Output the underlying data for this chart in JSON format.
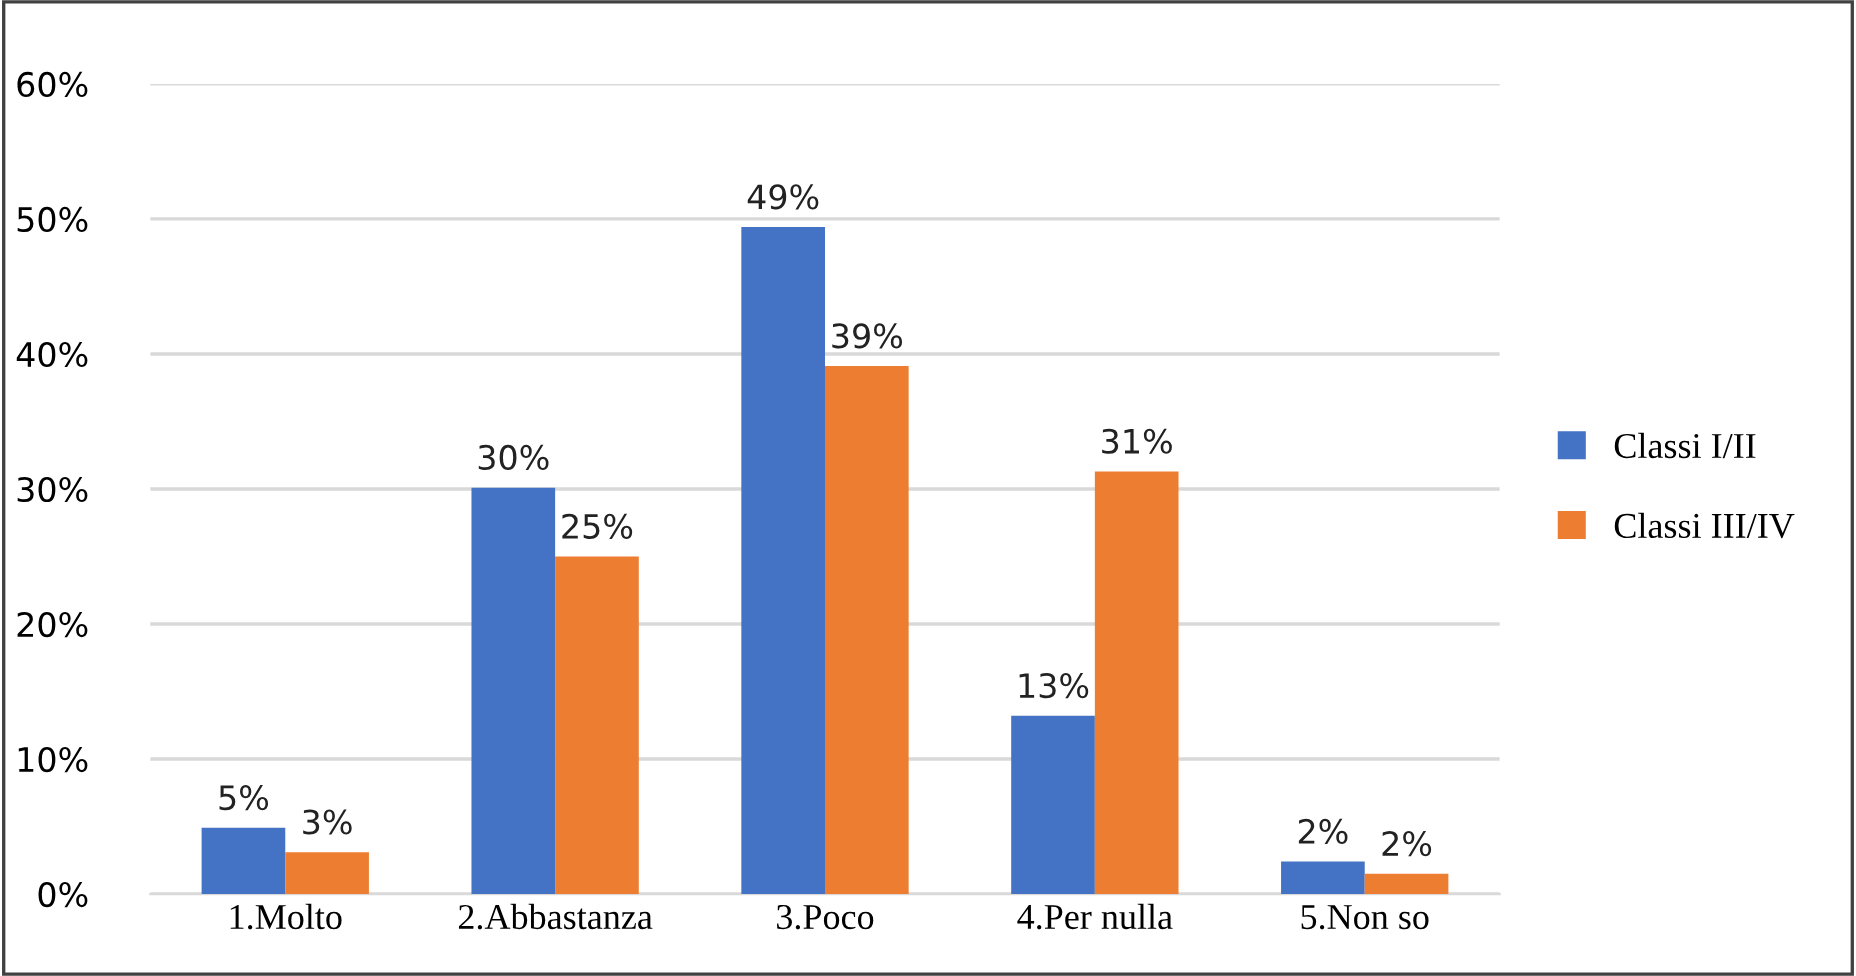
{
  "chart_data": {
    "type": "bar",
    "categories": [
      "1.Molto",
      "2.Abbastanza",
      "3.Poco",
      "4.Per nulla",
      "5.Non so"
    ],
    "series": [
      {
        "name": "Classi I/II",
        "color": "#4472c4",
        "values": [
          4.9,
          30.1,
          49.4,
          13.2,
          2.4
        ],
        "value_labels": [
          "5%",
          "30%",
          "49%",
          "13%",
          "2%"
        ]
      },
      {
        "name": "Classi III/IV",
        "color": "#ed7d31",
        "values": [
          3.1,
          25.0,
          39.1,
          31.3,
          1.5
        ],
        "value_labels": [
          "3%",
          "25%",
          "39%",
          "31%",
          "2%"
        ]
      }
    ],
    "ylim": [
      0,
      60
    ],
    "yticks": [
      {
        "value": 0,
        "label": "0%"
      },
      {
        "value": 10,
        "label": "10%"
      },
      {
        "value": 20,
        "label": "20%"
      },
      {
        "value": 30,
        "label": "30%"
      },
      {
        "value": 40,
        "label": "40%"
      },
      {
        "value": 50,
        "label": "50%"
      },
      {
        "value": 60,
        "label": "60%"
      }
    ],
    "grid": "y",
    "legend": "right"
  }
}
